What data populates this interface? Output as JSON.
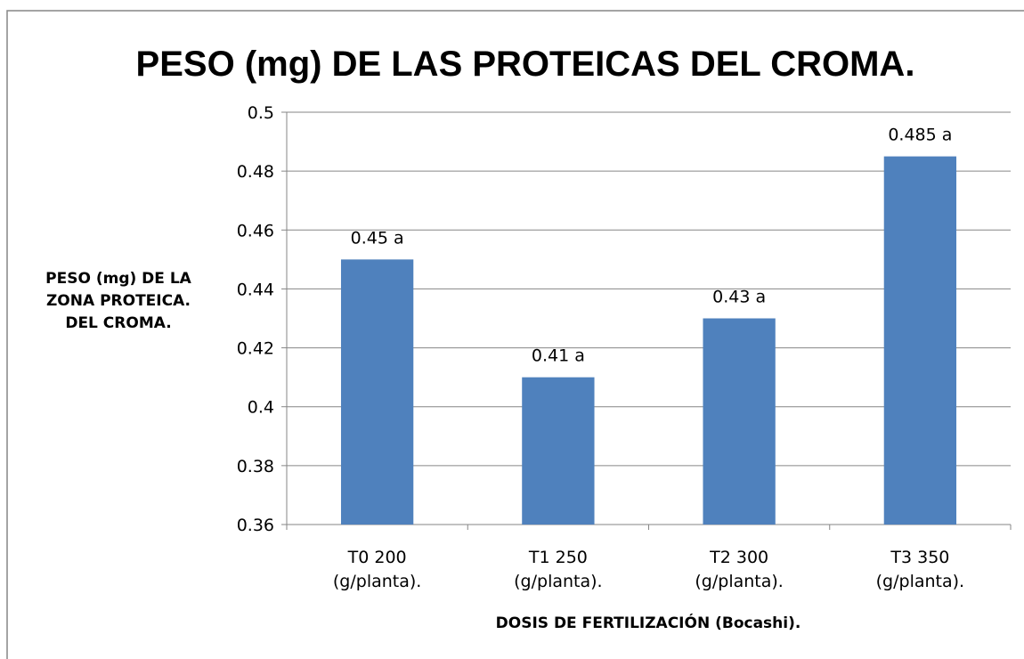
{
  "chart_data": {
    "type": "bar",
    "title": "PESO (mg) DE LAS PROTEICAS DEL CROMA.",
    "y_label": "PESO (mg) DE LA\nZONA PROTEICA.\nDEL CROMA.",
    "x_label": "DOSIS DE FERTILIZACIÓN (Bocashi).",
    "categories": [
      "T0  200\n(g/planta).",
      "T1  250\n(g/planta).",
      "T2  300\n(g/planta).",
      "T3  350\n(g/planta)."
    ],
    "values": [
      0.45,
      0.41,
      0.43,
      0.485
    ],
    "value_labels": [
      "0.45 a",
      "0.41 a",
      "0.43 a",
      "0.485 a"
    ],
    "color": "#4f81bd",
    "ylim": [
      0.36,
      0.5
    ],
    "yticks": [
      0.36,
      0.38,
      0.4,
      0.42,
      0.44,
      0.46,
      0.48,
      0.5
    ],
    "grid": true
  }
}
